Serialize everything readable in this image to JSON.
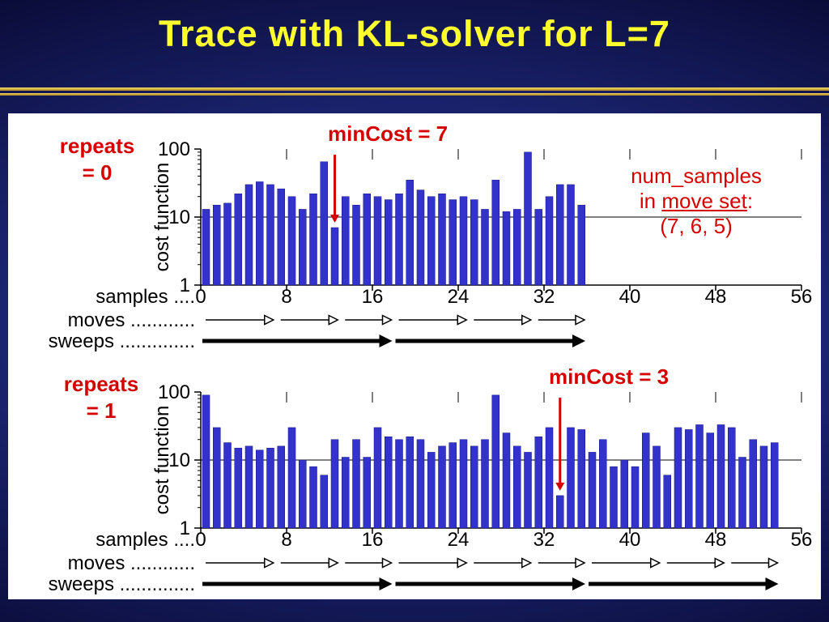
{
  "slide": {
    "title": "Trace with KL-solver for L=7"
  },
  "colors": {
    "title_yellow": "#ffff2e",
    "accent_red": "#d60000",
    "bar_blue": "#3333cc",
    "panel_white": "#ffffff"
  },
  "annotation": {
    "line1": "num_samples",
    "line2_prefix": "in ",
    "line2_underlined": "move set",
    "line2_suffix": ":",
    "line3": "(7, 6, 5)"
  },
  "chart_data": [
    {
      "type": "bar",
      "name": "repeats-0",
      "repeats_line1": "repeats",
      "repeats_line2": "= 0",
      "min_cost_label": "minCost = 7",
      "min_cost_index": 12,
      "ylabel": "cost function",
      "yscale": "log",
      "ylim": [
        1,
        100
      ],
      "yticks": [
        1,
        10,
        100
      ],
      "xticks": [
        0,
        8,
        16,
        24,
        32,
        40,
        48,
        56
      ],
      "samples_label": "samples ....",
      "moves_label": "moves ............",
      "sweeps_label": "sweeps ..............",
      "move_boundaries": [
        0,
        7,
        13,
        18,
        25,
        31,
        36
      ],
      "sweep_boundaries": [
        0,
        18,
        36
      ],
      "values": [
        13,
        15,
        16,
        22,
        30,
        33,
        30,
        26,
        20,
        13,
        22,
        65,
        7,
        20,
        15,
        22,
        20,
        18,
        22,
        35,
        25,
        20,
        22,
        18,
        20,
        18,
        13,
        35,
        12,
        13,
        90,
        13,
        20,
        30,
        30,
        15
      ]
    },
    {
      "type": "bar",
      "name": "repeats-1",
      "repeats_line1": "repeats",
      "repeats_line2": "= 1",
      "min_cost_label": "minCost = 3",
      "min_cost_index": 33,
      "ylabel": "cost function",
      "yscale": "log",
      "ylim": [
        1,
        100
      ],
      "yticks": [
        1,
        10,
        100
      ],
      "xticks": [
        0,
        8,
        16,
        24,
        32,
        40,
        48,
        56
      ],
      "samples_label": "samples ....",
      "moves_label": "moves ............",
      "sweeps_label": "sweeps ..............",
      "move_boundaries": [
        0,
        7,
        13,
        18,
        25,
        31,
        36,
        43,
        49,
        54
      ],
      "sweep_boundaries": [
        0,
        18,
        36,
        54
      ],
      "values": [
        90,
        30,
        18,
        15,
        16,
        14,
        15,
        16,
        30,
        10,
        8,
        6,
        20,
        11,
        20,
        11,
        30,
        22,
        20,
        22,
        20,
        13,
        16,
        18,
        20,
        16,
        20,
        90,
        25,
        16,
        13,
        22,
        30,
        3,
        30,
        28,
        13,
        20,
        8,
        10,
        8,
        25,
        16,
        6,
        30,
        28,
        33,
        25,
        33,
        30,
        11,
        20,
        16,
        18
      ]
    }
  ]
}
